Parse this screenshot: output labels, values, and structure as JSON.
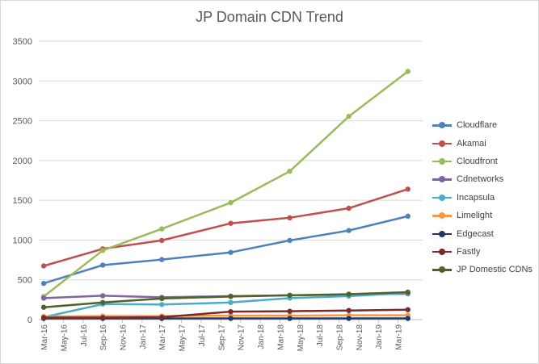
{
  "chart_data": {
    "type": "line",
    "title": "JP Domain CDN Trend",
    "xlabel": "",
    "ylabel": "",
    "ylim": [
      0,
      3500
    ],
    "yticks": [
      0,
      500,
      1000,
      1500,
      2000,
      2500,
      3000,
      3500
    ],
    "ytick_labels": [
      "0",
      "500",
      "1000",
      "1500",
      "2000",
      "2500",
      "3000",
      "3500"
    ],
    "x_tick_labels": [
      "Mar-16",
      "May-16",
      "Jul-16",
      "Sep-16",
      "Nov-16",
      "Jan-17",
      "Mar-17",
      "May-17",
      "Jul-17",
      "Sep-17",
      "Nov-17",
      "Jan-18",
      "Mar-18",
      "May-18",
      "Jul-18",
      "Sep-18",
      "Nov-18",
      "Jan-19",
      "Mar-19"
    ],
    "grid": true,
    "legend_position": "right",
    "series": [
      {
        "name": "Cloudflare",
        "color": "#4f81bd",
        "x": [
          "Mar-16",
          "Sep-16",
          "Mar-17",
          "Oct-17",
          "Apr-18",
          "Oct-18",
          "Apr-19"
        ],
        "values": [
          455,
          685,
          755,
          845,
          995,
          1120,
          1300
        ]
      },
      {
        "name": "Akamai",
        "color": "#c0504d",
        "x": [
          "Mar-16",
          "Sep-16",
          "Mar-17",
          "Oct-17",
          "Apr-18",
          "Oct-18",
          "Apr-19"
        ],
        "values": [
          675,
          890,
          995,
          1210,
          1280,
          1400,
          1640
        ]
      },
      {
        "name": "Cloudfront",
        "color": "#9bbb59",
        "x": [
          "Mar-16",
          "Sep-16",
          "Mar-17",
          "Oct-17",
          "Apr-18",
          "Oct-18",
          "Apr-19"
        ],
        "values": [
          290,
          870,
          1140,
          1470,
          1865,
          2555,
          3120
        ]
      },
      {
        "name": "Cdnetworks",
        "color": "#8064a2",
        "x": [
          "Mar-16",
          "Sep-16",
          "Mar-17",
          "Oct-17",
          "Apr-18",
          "Oct-18",
          "Apr-19"
        ],
        "values": [
          270,
          300,
          280,
          295,
          305,
          315,
          325
        ]
      },
      {
        "name": "Incapsula",
        "color": "#4bacc6",
        "x": [
          "Mar-16",
          "Sep-16",
          "Mar-17",
          "Oct-17",
          "Apr-18",
          "Oct-18",
          "Apr-19"
        ],
        "values": [
          30,
          195,
          190,
          215,
          270,
          295,
          335
        ]
      },
      {
        "name": "Limelight",
        "color": "#f79646",
        "x": [
          "Mar-16",
          "Sep-16",
          "Mar-17",
          "Oct-17",
          "Apr-18",
          "Oct-18",
          "Apr-19"
        ],
        "values": [
          40,
          45,
          45,
          50,
          50,
          55,
          55
        ]
      },
      {
        "name": "Edgecast",
        "color": "#1f3864",
        "x": [
          "Mar-16",
          "Sep-16",
          "Mar-17",
          "Oct-17",
          "Apr-18",
          "Oct-18",
          "Apr-19"
        ],
        "values": [
          15,
          15,
          15,
          15,
          15,
          15,
          15
        ]
      },
      {
        "name": "Fastly",
        "color": "#7b2a2a",
        "x": [
          "Mar-16",
          "Sep-16",
          "Mar-17",
          "Oct-17",
          "Apr-18",
          "Oct-18",
          "Apr-19"
        ],
        "values": [
          25,
          25,
          30,
          100,
          105,
          115,
          125
        ]
      },
      {
        "name": "JP Domestic CDNs",
        "color": "#4f6228",
        "x": [
          "Mar-16",
          "Sep-16",
          "Mar-17",
          "Oct-17",
          "Apr-18",
          "Oct-18",
          "Apr-19"
        ],
        "values": [
          155,
          215,
          265,
          290,
          305,
          320,
          345
        ]
      }
    ]
  }
}
